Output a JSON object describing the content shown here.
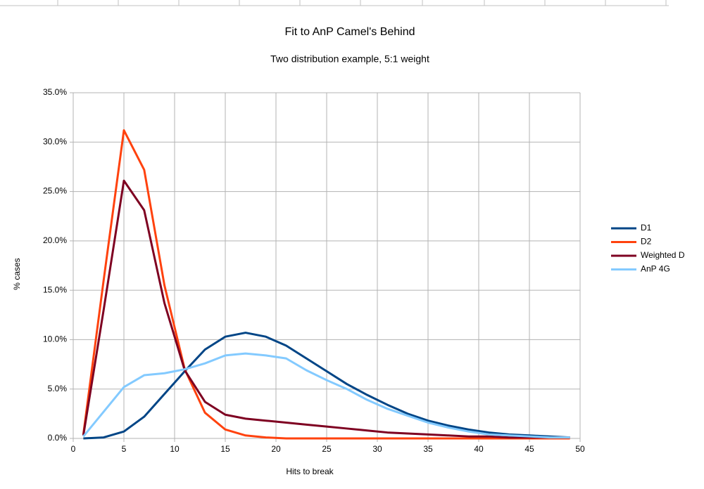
{
  "chart_data": {
    "type": "line",
    "title": "Fit to AnP Camel's Behind",
    "subtitle": "Two distribution example, 5:1 weight",
    "x_label": "Hits to break",
    "y_label": "% cases",
    "x": [
      1,
      3,
      5,
      7,
      9,
      11,
      13,
      15,
      17,
      19,
      21,
      23,
      25,
      27,
      29,
      31,
      33,
      35,
      37,
      39,
      41,
      43,
      45,
      47,
      49
    ],
    "series": [
      {
        "name": "D1",
        "color": "#004586",
        "values": [
          0.0,
          0.1,
          0.7,
          2.2,
          4.5,
          6.8,
          9.0,
          10.3,
          10.7,
          10.3,
          9.4,
          8.1,
          6.8,
          5.5,
          4.4,
          3.4,
          2.5,
          1.8,
          1.3,
          0.9,
          0.6,
          0.4,
          0.3,
          0.2,
          0.1
        ]
      },
      {
        "name": "D2",
        "color": "#ff420e",
        "values": [
          0.4,
          16.0,
          31.2,
          27.2,
          15.5,
          7.0,
          2.6,
          0.9,
          0.3,
          0.1,
          0.0,
          0.0,
          0.0,
          0.0,
          0.0,
          0.0,
          0.0,
          0.0,
          0.0,
          0.0,
          0.0,
          0.0,
          0.0,
          0.0,
          0.0
        ]
      },
      {
        "name": "Weighted D",
        "color": "#7e0021",
        "values": [
          0.3,
          13.0,
          26.1,
          23.1,
          13.7,
          6.9,
          3.7,
          2.4,
          2.0,
          1.8,
          1.6,
          1.4,
          1.2,
          1.0,
          0.8,
          0.6,
          0.5,
          0.4,
          0.3,
          0.2,
          0.2,
          0.1,
          0.1,
          0.1,
          0.1
        ]
      },
      {
        "name": "AnP 4G",
        "color": "#83caff",
        "values": [
          0.2,
          2.7,
          5.2,
          6.4,
          6.6,
          7.0,
          7.6,
          8.4,
          8.6,
          8.4,
          8.1,
          6.9,
          5.9,
          5.0,
          3.9,
          3.0,
          2.3,
          1.6,
          1.1,
          0.7,
          0.4,
          0.3,
          0.2,
          0.1,
          0.1
        ]
      }
    ],
    "xlim": [
      0,
      50
    ],
    "xticks": [
      0,
      5,
      10,
      15,
      20,
      25,
      30,
      35,
      40,
      45,
      50
    ],
    "ylim": [
      0,
      35
    ],
    "yticks": [
      {
        "value": 0,
        "label": "0.0%"
      },
      {
        "value": 5,
        "label": "5.0%"
      },
      {
        "value": 10,
        "label": "10.0%"
      },
      {
        "value": 15,
        "label": "15.0%"
      },
      {
        "value": 20,
        "label": "20.0%"
      },
      {
        "value": 25,
        "label": "25.0%"
      },
      {
        "value": 30,
        "label": "30.0%"
      },
      {
        "value": 35,
        "label": "35.0%"
      }
    ],
    "grid": true,
    "legend": "right"
  }
}
